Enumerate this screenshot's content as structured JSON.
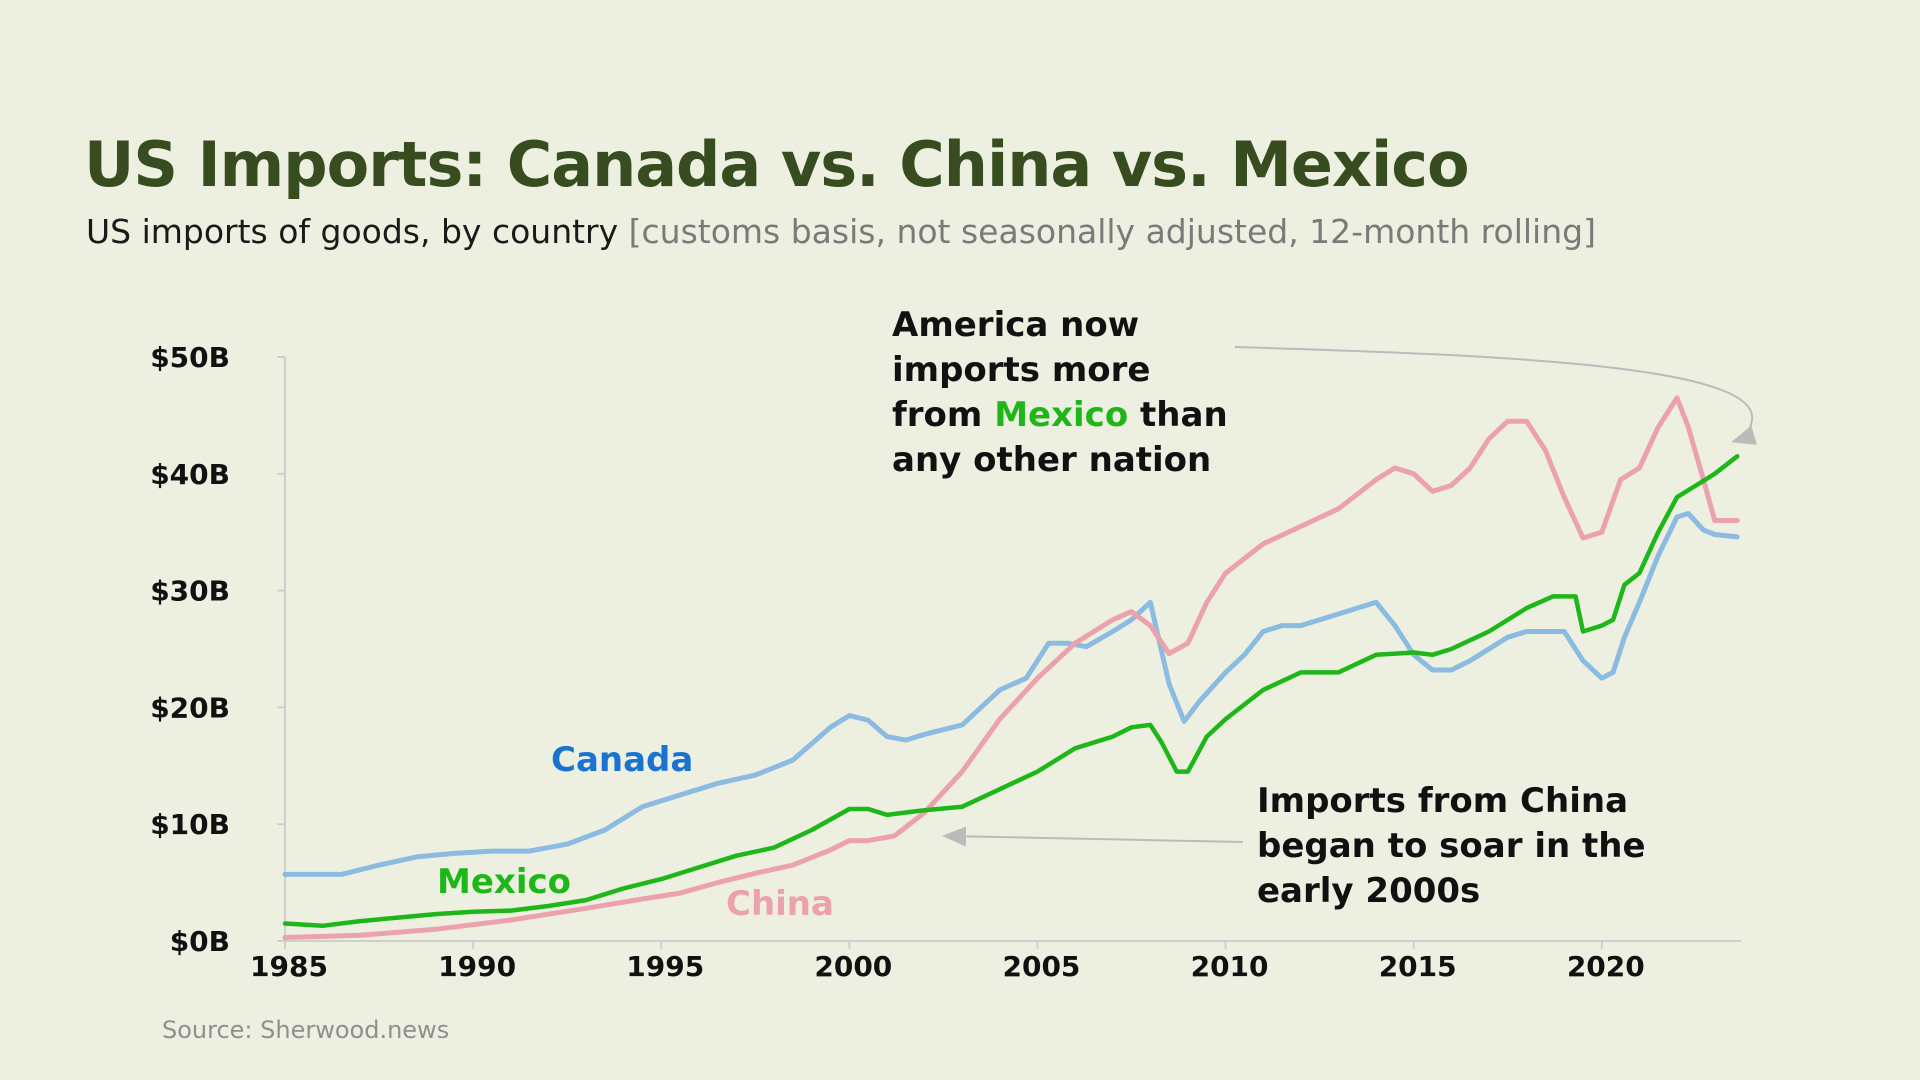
{
  "header": {
    "title": "US Imports: Canada vs. China vs. Mexico",
    "subtitle_main": "US imports of goods, by country",
    "subtitle_note": "[customs basis, not seasonally adjusted, 12-month rolling]"
  },
  "footer": {
    "source": "Source: Sherwood.news"
  },
  "annotations": {
    "top_line1": "America now",
    "top_line2": "imports more",
    "top_line3_pre": "from",
    "top_line3_highlight": "Mexico",
    "top_line3_post": "than",
    "top_line4": "any other nation",
    "bottom_line1": "Imports from China",
    "bottom_line2": "began to soar in the",
    "bottom_line3": "early 2000s"
  },
  "colors": {
    "canada": "#8bbbe0",
    "china": "#eba2ad",
    "mexico": "#1fb619",
    "title": "#374d1f",
    "label_canada": "#1a73d0"
  },
  "chart_data": {
    "type": "line",
    "title": "US Imports: Canada vs. China vs. Mexico",
    "xlabel": "",
    "ylabel": "",
    "xlim": [
      1985,
      2023.7
    ],
    "ylim": [
      0,
      50
    ],
    "x_ticks": [
      1985,
      1990,
      1995,
      2000,
      2005,
      2010,
      2015,
      2020
    ],
    "y_ticks": [
      0,
      10,
      20,
      30,
      40,
      50
    ],
    "y_tick_labels": [
      "$0B",
      "$10B",
      "$20B",
      "$30B",
      "$40B",
      "$50B"
    ],
    "grid": false,
    "legend": "inline labels",
    "series": [
      {
        "name": "Canada",
        "x": [
          1985,
          1986.5,
          1987.5,
          1988.5,
          1989.5,
          1990.5,
          1991.5,
          1992.5,
          1993.5,
          1994,
          1994.5,
          1995.5,
          1996.5,
          1997.5,
          1998.5,
          1999.5,
          2000,
          2000.5,
          2001,
          2001.5,
          2002,
          2003,
          2004,
          2004.7,
          2005.3,
          2005.8,
          2006.3,
          2007,
          2007.5,
          2008,
          2008.5,
          2008.9,
          2009.3,
          2010,
          2010.5,
          2011,
          2011.5,
          2012,
          2013,
          2013.5,
          2014,
          2014.5,
          2015,
          2015.5,
          2016,
          2016.5,
          2017,
          2017.5,
          2018,
          2019,
          2019.5,
          2020,
          2020.3,
          2020.6,
          2021,
          2021.5,
          2022,
          2022.3,
          2022.7,
          2023,
          2023.6
        ],
        "y": [
          5.7,
          5.7,
          6.5,
          7.2,
          7.5,
          7.7,
          7.7,
          8.3,
          9.5,
          10.5,
          11.5,
          12.5,
          13.5,
          14.2,
          15.5,
          18.3,
          19.3,
          18.9,
          17.5,
          17.2,
          17.7,
          18.5,
          21.5,
          22.5,
          25.5,
          25.5,
          25.2,
          26.5,
          27.5,
          29,
          22,
          18.8,
          20.5,
          23,
          24.5,
          26.5,
          27,
          27,
          28,
          28.5,
          29,
          27,
          24.5,
          23.2,
          23.2,
          24,
          25,
          26,
          26.5,
          26.5,
          24,
          22.5,
          23,
          26,
          29,
          33,
          36.3,
          36.6,
          35.2,
          34.8,
          34.6
        ]
      },
      {
        "name": "China",
        "x": [
          1985,
          1987,
          1989,
          1991,
          1993,
          1994.5,
          1995.5,
          1996.5,
          1997.5,
          1998.5,
          1999.5,
          2000,
          2000.5,
          2001.2,
          2002,
          2003,
          2004,
          2005,
          2006,
          2007,
          2007.5,
          2008,
          2008.5,
          2009,
          2009.5,
          2010,
          2011,
          2012,
          2013,
          2014,
          2014.5,
          2015,
          2015.5,
          2016,
          2016.5,
          2017,
          2017.5,
          2018,
          2018.5,
          2019,
          2019.5,
          2020,
          2020.5,
          2021,
          2021.5,
          2022,
          2022.3,
          2022.7,
          2023,
          2023.6
        ],
        "y": [
          0.3,
          0.5,
          1.0,
          1.8,
          2.8,
          3.6,
          4.1,
          5.0,
          5.8,
          6.5,
          7.8,
          8.6,
          8.6,
          9.0,
          11.0,
          14.5,
          19.0,
          22.5,
          25.5,
          27.5,
          28.2,
          27.0,
          24.6,
          25.5,
          29.0,
          31.5,
          34.0,
          35.5,
          37.0,
          39.5,
          40.5,
          40.0,
          38.5,
          39.0,
          40.5,
          43.0,
          44.5,
          44.5,
          42.0,
          38.0,
          34.5,
          35.0,
          39.5,
          40.5,
          44.0,
          46.5,
          44.0,
          39.5,
          36.0,
          36.0
        ]
      },
      {
        "name": "Mexico",
        "x": [
          1985,
          1986,
          1987,
          1988,
          1989,
          1990,
          1991,
          1992,
          1993,
          1994,
          1995,
          1996,
          1997,
          1998,
          1999,
          2000,
          2000.5,
          2001,
          2001.5,
          2002,
          2003,
          2004,
          2005,
          2006,
          2007,
          2007.5,
          2008,
          2008.3,
          2008.7,
          2009,
          2009.5,
          2010,
          2011,
          2012,
          2013,
          2014,
          2015,
          2015.5,
          2016,
          2017,
          2018,
          2018.7,
          2019.3,
          2019.5,
          2020,
          2020.3,
          2020.6,
          2021,
          2021.5,
          2022,
          2022.5,
          2023,
          2023.6
        ],
        "y": [
          1.5,
          1.3,
          1.7,
          2.0,
          2.3,
          2.5,
          2.6,
          3.0,
          3.5,
          4.5,
          5.3,
          6.3,
          7.3,
          8.0,
          9.5,
          11.3,
          11.3,
          10.8,
          11.0,
          11.2,
          11.5,
          13.0,
          14.5,
          16.5,
          17.5,
          18.3,
          18.5,
          17.0,
          14.5,
          14.5,
          17.5,
          19.0,
          21.5,
          23.0,
          23.0,
          24.5,
          24.7,
          24.5,
          25.0,
          26.5,
          28.5,
          29.5,
          29.5,
          26.5,
          27.0,
          27.5,
          30.5,
          31.5,
          35.0,
          38.0,
          39.0,
          40.0,
          41.5
        ]
      }
    ]
  }
}
